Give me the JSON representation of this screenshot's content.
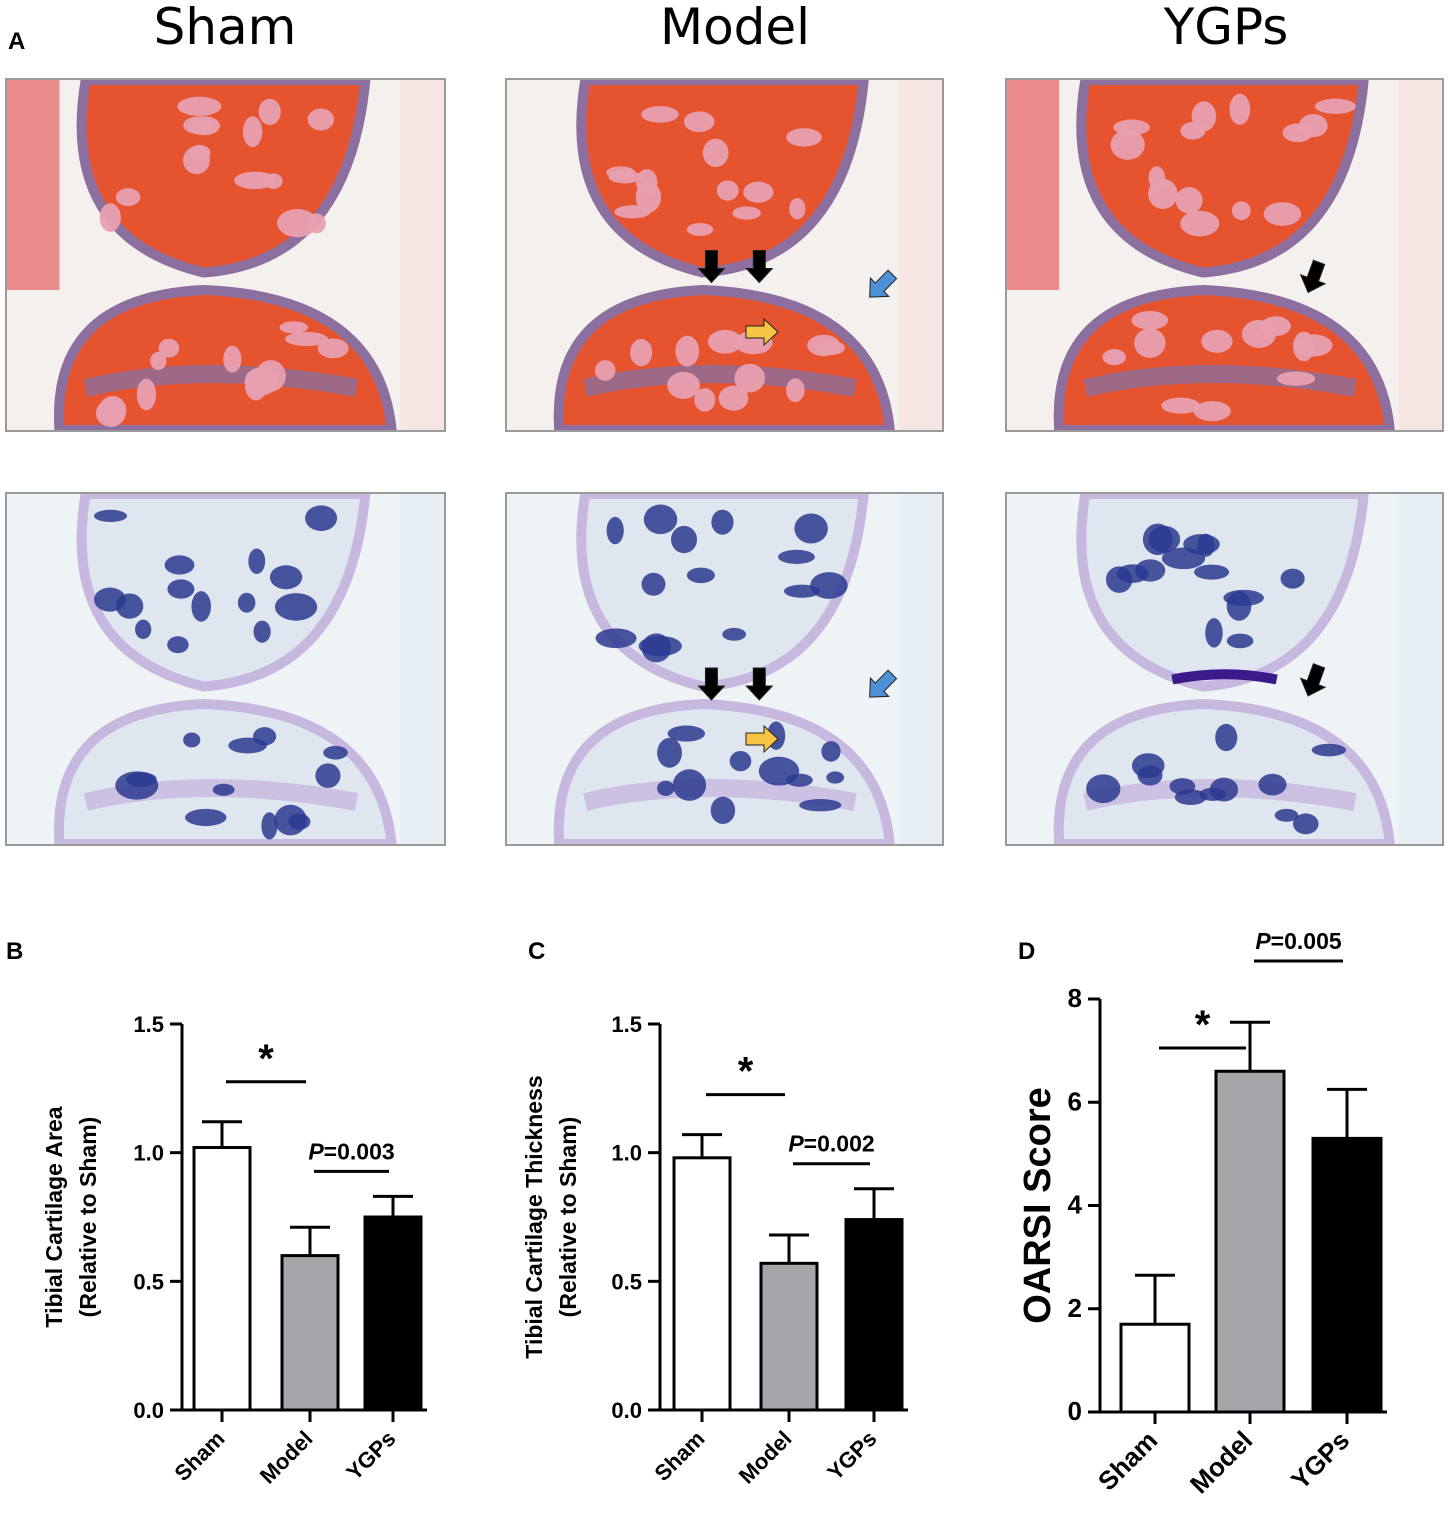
{
  "panel_labels": [
    "A",
    "B",
    "C",
    "D"
  ],
  "column_titles": [
    "Sham",
    "Model",
    "YGPs"
  ],
  "colors": {
    "sham_bar": "#ffffff",
    "model_bar": "#a6a6aa",
    "ygps_bar": "#000000",
    "he_bg": "#f3f0ee",
    "he_tissue": "#e6532f",
    "he_marrow": "#e8a0b0",
    "he_cartilage": "#8c6f9e",
    "tb_bg": "#eef3f6",
    "tb_bone": "#2b3a8f",
    "tb_cartilage": "#c7b8df",
    "arrow_black": "#000000",
    "arrow_blue": "#4f8fd6",
    "arrow_yellow": "#f7c443"
  },
  "chart_data": [
    {
      "type": "bar",
      "panel": "B",
      "categories": [
        "Sham",
        "Model",
        "YGPs"
      ],
      "values": [
        1.02,
        0.6,
        0.75
      ],
      "errors": [
        0.1,
        0.11,
        0.08
      ],
      "ylabel_line1": "Tibial Cartilage Area",
      "ylabel_line2": "(Relative to Sham)",
      "ylim": [
        0,
        1.5
      ],
      "yticks": [
        "0.0",
        "0.5",
        "1.0",
        "1.5"
      ],
      "significance": [
        {
          "from": 0,
          "to": 1,
          "label": "*"
        },
        {
          "from": 1,
          "to": 2,
          "label_p": "P",
          "label_rest": "=0.003"
        }
      ]
    },
    {
      "type": "bar",
      "panel": "C",
      "categories": [
        "Sham",
        "Model",
        "YGPs"
      ],
      "values": [
        0.98,
        0.57,
        0.74
      ],
      "errors": [
        0.09,
        0.11,
        0.12
      ],
      "ylabel_line1": "Tibial Cartilage Thickness",
      "ylabel_line2": "(Relative to Sham)",
      "ylim": [
        0,
        1.5
      ],
      "yticks": [
        "0.0",
        "0.5",
        "1.0",
        "1.5"
      ],
      "significance": [
        {
          "from": 0,
          "to": 1,
          "label": "*"
        },
        {
          "from": 1,
          "to": 2,
          "label_p": "P",
          "label_rest": "=0.002"
        }
      ]
    },
    {
      "type": "bar",
      "panel": "D",
      "categories": [
        "Sham",
        "Model",
        "YGPs"
      ],
      "values": [
        1.7,
        6.6,
        5.3
      ],
      "errors": [
        0.95,
        0.95,
        0.95
      ],
      "ylabel_line1": "OARSI Score",
      "ylabel_line2": "",
      "ylim": [
        0,
        8
      ],
      "yticks": [
        "0",
        "2",
        "4",
        "6",
        "8"
      ],
      "significance": [
        {
          "from": 0,
          "to": 1,
          "label": "*"
        },
        {
          "from": 1,
          "to": 2,
          "label_p": "P",
          "label_rest": "=0.005"
        }
      ]
    }
  ]
}
